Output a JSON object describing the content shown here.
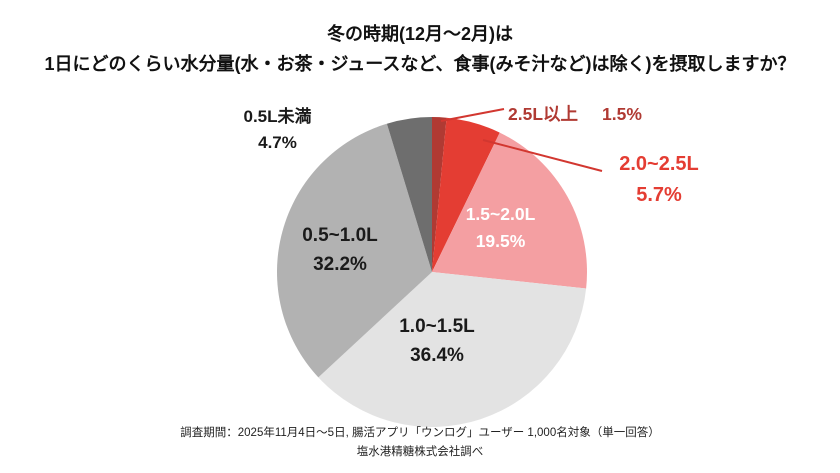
{
  "title": {
    "line1": "冬の時期(12月〜2月)は",
    "line2": "1日にどのくらい水分量(水・お茶・ジュースなど、食事(みそ汁など)は除く)を摂取しますか？"
  },
  "chart_data": {
    "type": "pie",
    "start_angle_deg": 0,
    "direction": "clockwise",
    "unit": "%",
    "slices": [
      {
        "label": "2.5L以上",
        "value": 1.5,
        "value_label": "1.5%",
        "color": "#b03a33",
        "label_placement": "outside-top-right",
        "label_color": "#b03a33"
      },
      {
        "label": "2.0~2.5L",
        "value": 5.7,
        "value_label": "5.7%",
        "color": "#e43d33",
        "label_placement": "outside-right",
        "label_color": "#e43d33"
      },
      {
        "label": "1.5~2.0L",
        "value": 19.5,
        "value_label": "19.5%",
        "color": "#f49fa2",
        "label_placement": "inside",
        "label_color": "#ffffff"
      },
      {
        "label": "1.0~1.5L",
        "value": 36.4,
        "value_label": "36.4%",
        "color": "#e3e3e3",
        "label_placement": "inside",
        "label_color": "#1a1a1a"
      },
      {
        "label": "0.5~1.0L",
        "value": 32.2,
        "value_label": "32.2%",
        "color": "#b2b2b2",
        "label_placement": "inside",
        "label_color": "#1a1a1a"
      },
      {
        "label": "0.5L未満",
        "value": 4.7,
        "value_label": "4.7%",
        "color": "#6e6e6e",
        "label_placement": "outside-top-left",
        "label_color": "#1a1a1a"
      }
    ],
    "leader_line_color": "#d23730"
  },
  "footer": {
    "line1": "調査期間：2025年11月4日〜5日, 腸活アプリ「ウンログ」ユーザー 1,000名対象（単一回答）",
    "line2": "塩水港精糖株式会社調べ"
  }
}
